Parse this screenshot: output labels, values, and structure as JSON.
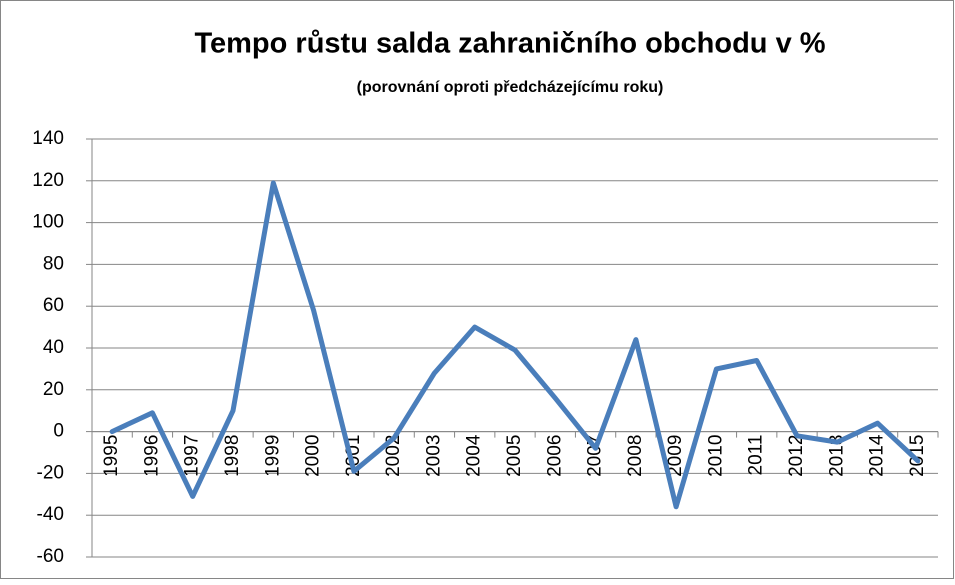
{
  "chart_data": {
    "type": "line",
    "title": "Tempo růstu salda zahraničního obchodu v %",
    "subtitle": "(porovnání oproti předcházejícímu roku)",
    "categories": [
      "1995",
      "1996",
      "1997",
      "1998",
      "1999",
      "2000",
      "2001",
      "2002",
      "2003",
      "2004",
      "2005",
      "2006",
      "2007",
      "2008",
      "2009",
      "2010",
      "2011",
      "2012",
      "2013",
      "2014",
      "2015"
    ],
    "series": [
      {
        "name": "Tempo růstu",
        "color": "#4a7ebb",
        "values": [
          0,
          9,
          -31,
          10,
          119,
          58,
          -19,
          -3,
          28,
          50,
          39,
          16,
          -8,
          44,
          -36,
          30,
          34,
          -2,
          -5,
          4,
          -14
        ]
      }
    ],
    "ylim": [
      -60,
      140
    ],
    "yticks": [
      -60,
      -40,
      -20,
      0,
      20,
      40,
      60,
      80,
      100,
      120,
      140
    ],
    "grid": true
  }
}
